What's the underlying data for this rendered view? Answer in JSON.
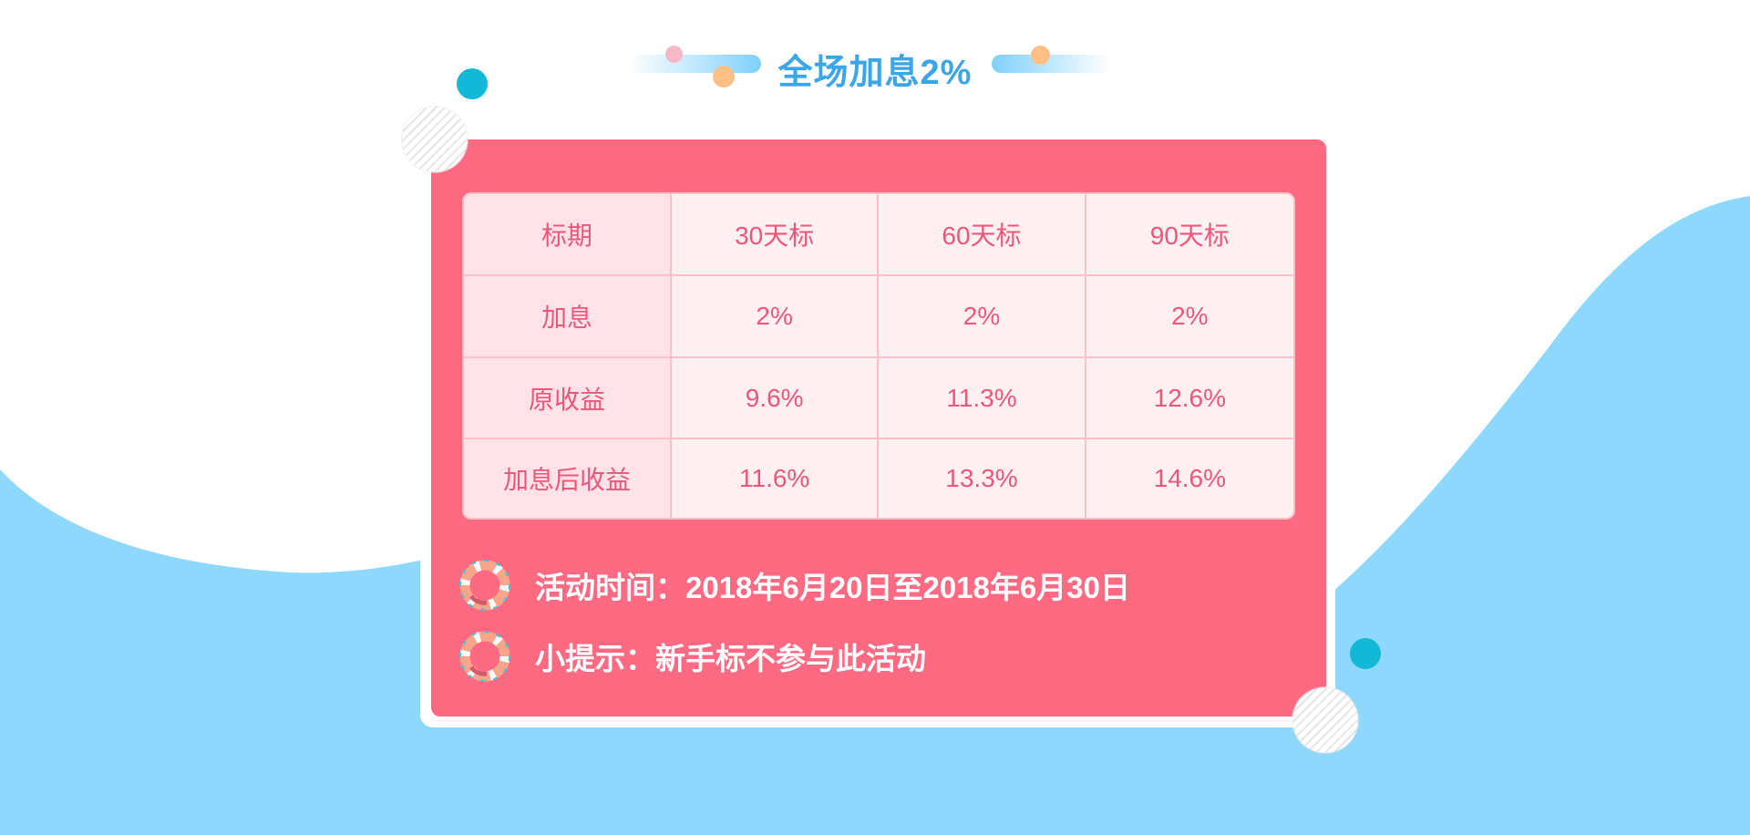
{
  "title": "全场加息2%",
  "table": {
    "header": [
      "标期",
      "30天标",
      "60天标",
      "90天标"
    ],
    "rows": [
      [
        "加息",
        "2%",
        "2%",
        "2%"
      ],
      [
        "原收益",
        "9.6%",
        "11.3%",
        "12.6%"
      ],
      [
        "加息后收益",
        "11.6%",
        "13.3%",
        "14.6%"
      ]
    ]
  },
  "info": {
    "activity_time": "活动时间：2018年6月20日至2018年6月30日",
    "tip": "小提示：新手标不参与此活动"
  },
  "icons": {
    "info_icon": "life-ring-icon"
  },
  "colors": {
    "wave": "#8fd8fd",
    "card": "#ff6a83",
    "title": "#3aa6e8",
    "table_text": "#f0567a",
    "table_bg": "#fff0f2",
    "table_label_bg": "#ffe3e8",
    "table_border": "#ffc0ca",
    "accent_dot": "#12b8d6"
  }
}
